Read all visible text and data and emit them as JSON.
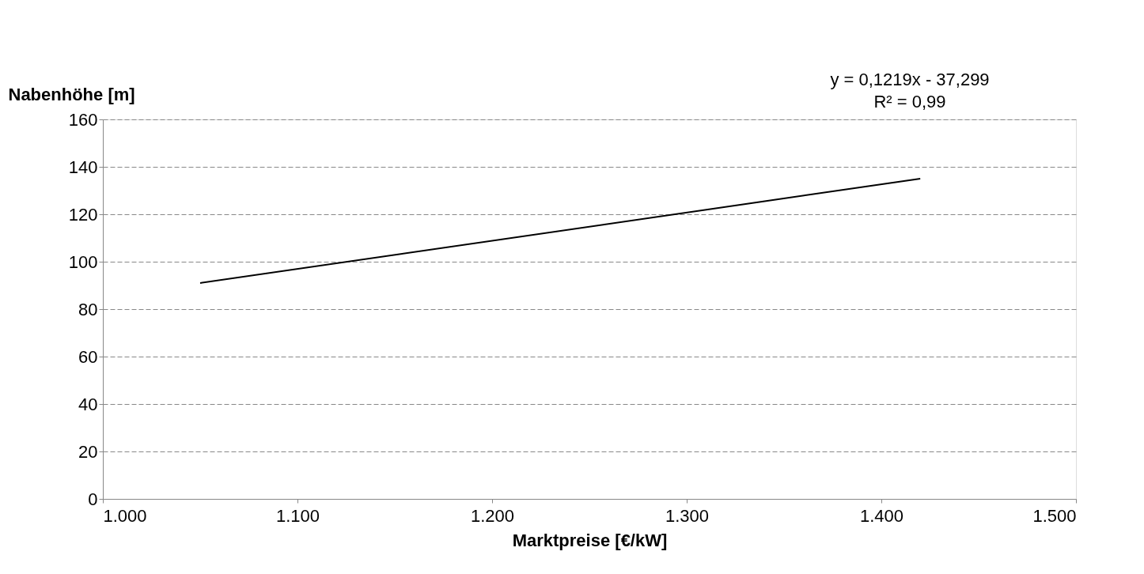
{
  "chart_data": {
    "type": "line",
    "xlabel": "Marktpreise  [€/kW]",
    "ylabel": "Nabenhöhe [m]",
    "annotations": [
      "y = 0,1219x  - 37,299",
      "R² = 0,99"
    ],
    "series": [
      {
        "color": "#000000",
        "x": [
          1050,
          1420
        ],
        "values": [
          91,
          135
        ]
      }
    ],
    "xlim": [
      1000,
      1500
    ],
    "xticks": [
      {
        "value": 1000,
        "label": "1.000"
      },
      {
        "value": 1100,
        "label": "1.100"
      },
      {
        "value": 1200,
        "label": "1.200"
      },
      {
        "value": 1300,
        "label": "1.300"
      },
      {
        "value": 1400,
        "label": "1.400"
      },
      {
        "value": 1500,
        "label": "1.500"
      }
    ],
    "ylim": [
      0,
      160
    ],
    "yticks": [
      0,
      20,
      40,
      60,
      80,
      100,
      120,
      140,
      160
    ],
    "grid": "y",
    "marker": "none",
    "line_style": "solid"
  }
}
